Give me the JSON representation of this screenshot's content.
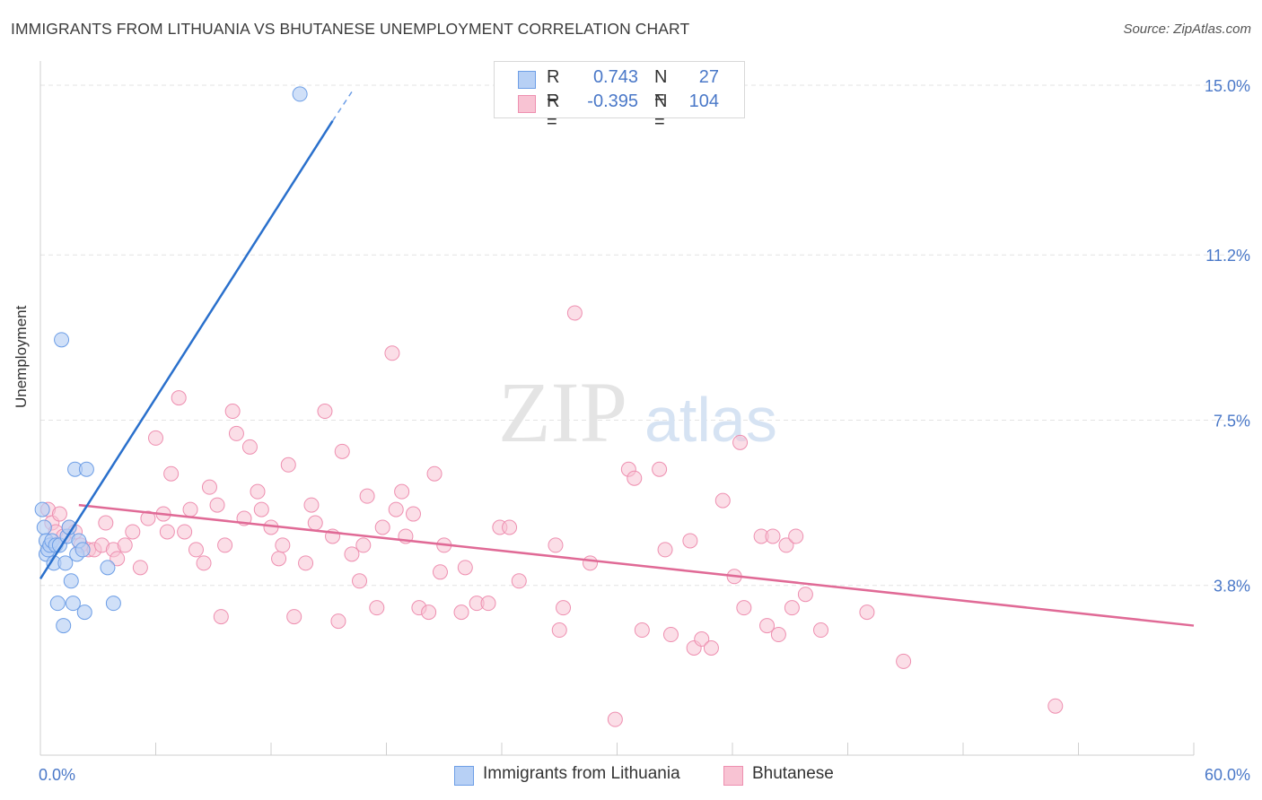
{
  "title": "IMMIGRANTS FROM LITHUANIA VS BHUTANESE UNEMPLOYMENT CORRELATION CHART",
  "source": "Source: ZipAtlas.com",
  "watermark": {
    "zip": "ZIP",
    "atlas": "atlas"
  },
  "legend_top": {
    "rows": [
      {
        "r_label": "R =",
        "r_value": "0.743",
        "n_label": "N =",
        "n_value": "27"
      },
      {
        "r_label": "R =",
        "r_value": "-0.395",
        "n_label": "N =",
        "n_value": "104"
      }
    ]
  },
  "legend_bottom": {
    "items": [
      "Immigrants from Lithuania",
      "Bhutanese"
    ]
  },
  "colors": {
    "blue_fill": "#b7d0f5",
    "blue_stroke": "#6d9ee6",
    "blue_line": "#2a70cc",
    "pink_fill": "#f8c3d3",
    "pink_stroke": "#ee8fb0",
    "pink_line": "#e06a96",
    "tick_text": "#4a78c8",
    "grid": "#e3e3e3"
  },
  "chart_data": {
    "type": "scatter",
    "title": "IMMIGRANTS FROM LITHUANIA VS BHUTANESE UNEMPLOYMENT CORRELATION CHART",
    "xlabel": "",
    "ylabel": "Unemployment",
    "xlim": [
      0,
      60
    ],
    "ylim": [
      0,
      15.3
    ],
    "x_tick_labels": [
      "0.0%",
      "60.0%"
    ],
    "y_ticks": [
      3.8,
      7.5,
      11.2,
      15.0
    ],
    "y_tick_labels": [
      "3.8%",
      "7.5%",
      "11.2%",
      "15.0%"
    ],
    "grid": "horizontal dashed",
    "series": [
      {
        "name": "Immigrants from Lithuania",
        "points": [
          [
            0.1,
            5.5
          ],
          [
            0.2,
            5.1
          ],
          [
            0.3,
            4.8
          ],
          [
            0.3,
            4.5
          ],
          [
            0.4,
            4.6
          ],
          [
            0.5,
            4.7
          ],
          [
            0.6,
            4.8
          ],
          [
            0.7,
            4.3
          ],
          [
            0.8,
            4.7
          ],
          [
            0.9,
            3.4
          ],
          [
            1.0,
            4.7
          ],
          [
            1.1,
            9.3
          ],
          [
            1.2,
            2.9
          ],
          [
            1.3,
            4.3
          ],
          [
            1.4,
            4.9
          ],
          [
            1.5,
            5.1
          ],
          [
            1.6,
            3.9
          ],
          [
            1.7,
            3.4
          ],
          [
            1.8,
            6.4
          ],
          [
            1.9,
            4.5
          ],
          [
            2.0,
            4.8
          ],
          [
            2.2,
            4.6
          ],
          [
            2.3,
            3.2
          ],
          [
            2.4,
            6.4
          ],
          [
            3.5,
            4.2
          ],
          [
            3.8,
            3.4
          ],
          [
            13.5,
            14.8
          ]
        ],
        "trend": {
          "x": [
            0,
            15.2
          ],
          "y": [
            3.95,
            14.2
          ],
          "dashed_to": [
            16.2,
            14.85
          ]
        }
      },
      {
        "name": "Bhutanese",
        "points": [
          [
            0.4,
            5.5
          ],
          [
            0.6,
            5.2
          ],
          [
            0.8,
            5.0
          ],
          [
            1.0,
            5.4
          ],
          [
            1.2,
            4.9
          ],
          [
            1.5,
            5.1
          ],
          [
            1.8,
            5.0
          ],
          [
            2.1,
            4.7
          ],
          [
            2.5,
            4.6
          ],
          [
            2.8,
            4.6
          ],
          [
            3.2,
            4.7
          ],
          [
            3.4,
            5.2
          ],
          [
            3.8,
            4.6
          ],
          [
            4.0,
            4.4
          ],
          [
            4.4,
            4.7
          ],
          [
            4.8,
            5.0
          ],
          [
            5.2,
            4.2
          ],
          [
            5.6,
            5.3
          ],
          [
            6.0,
            7.1
          ],
          [
            6.4,
            5.4
          ],
          [
            6.6,
            5.0
          ],
          [
            6.8,
            6.3
          ],
          [
            7.2,
            8.0
          ],
          [
            7.5,
            5.0
          ],
          [
            7.8,
            5.5
          ],
          [
            8.1,
            4.6
          ],
          [
            8.5,
            4.3
          ],
          [
            8.8,
            6.0
          ],
          [
            9.2,
            5.6
          ],
          [
            9.4,
            3.1
          ],
          [
            9.6,
            4.7
          ],
          [
            10.0,
            7.7
          ],
          [
            10.2,
            7.2
          ],
          [
            10.6,
            5.3
          ],
          [
            10.9,
            6.9
          ],
          [
            11.3,
            5.9
          ],
          [
            11.5,
            5.5
          ],
          [
            12.0,
            5.1
          ],
          [
            12.4,
            4.4
          ],
          [
            12.6,
            4.7
          ],
          [
            12.9,
            6.5
          ],
          [
            13.2,
            3.1
          ],
          [
            13.8,
            4.3
          ],
          [
            14.1,
            5.6
          ],
          [
            14.3,
            5.2
          ],
          [
            14.8,
            7.7
          ],
          [
            15.2,
            4.9
          ],
          [
            15.5,
            3.0
          ],
          [
            15.7,
            6.8
          ],
          [
            16.2,
            4.5
          ],
          [
            16.6,
            3.9
          ],
          [
            16.8,
            4.7
          ],
          [
            17.0,
            5.8
          ],
          [
            17.5,
            3.3
          ],
          [
            17.8,
            5.1
          ],
          [
            18.3,
            9.0
          ],
          [
            18.5,
            5.5
          ],
          [
            18.8,
            5.9
          ],
          [
            19.0,
            4.9
          ],
          [
            19.4,
            5.4
          ],
          [
            19.7,
            3.3
          ],
          [
            20.2,
            3.2
          ],
          [
            20.5,
            6.3
          ],
          [
            20.8,
            4.1
          ],
          [
            21.0,
            4.7
          ],
          [
            21.9,
            3.2
          ],
          [
            22.1,
            4.2
          ],
          [
            22.7,
            3.4
          ],
          [
            23.3,
            3.4
          ],
          [
            23.9,
            5.1
          ],
          [
            24.4,
            5.1
          ],
          [
            24.9,
            3.9
          ],
          [
            26.8,
            4.7
          ],
          [
            27.0,
            2.8
          ],
          [
            27.2,
            3.3
          ],
          [
            27.8,
            9.9
          ],
          [
            28.6,
            4.3
          ],
          [
            29.9,
            0.8
          ],
          [
            30.6,
            6.4
          ],
          [
            30.9,
            6.2
          ],
          [
            31.3,
            2.8
          ],
          [
            32.2,
            6.4
          ],
          [
            32.5,
            4.6
          ],
          [
            32.8,
            2.7
          ],
          [
            33.8,
            4.8
          ],
          [
            34.0,
            2.4
          ],
          [
            34.4,
            2.6
          ],
          [
            34.9,
            2.4
          ],
          [
            35.5,
            5.7
          ],
          [
            36.1,
            4.0
          ],
          [
            36.4,
            7.0
          ],
          [
            36.6,
            3.3
          ],
          [
            37.5,
            4.9
          ],
          [
            37.8,
            2.9
          ],
          [
            38.1,
            4.9
          ],
          [
            38.4,
            2.7
          ],
          [
            38.8,
            4.7
          ],
          [
            39.1,
            3.3
          ],
          [
            39.3,
            4.9
          ],
          [
            39.8,
            3.6
          ],
          [
            40.6,
            2.8
          ],
          [
            43.0,
            3.2
          ],
          [
            44.9,
            2.1
          ],
          [
            52.8,
            1.1
          ]
        ],
        "trend": {
          "x": [
            2.0,
            60.0
          ],
          "y": [
            5.6,
            2.9
          ]
        }
      }
    ]
  }
}
